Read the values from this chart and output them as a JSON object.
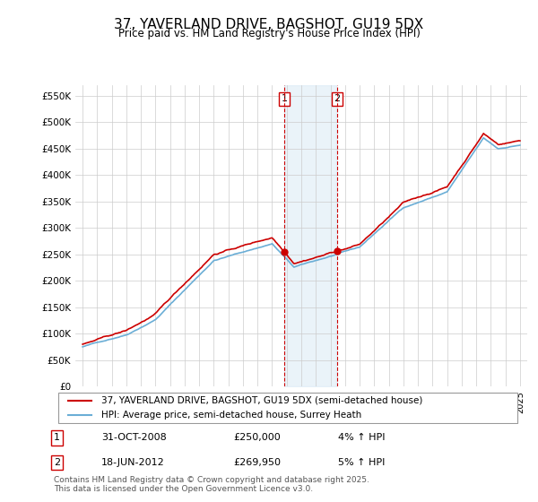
{
  "title": "37, YAVERLAND DRIVE, BAGSHOT, GU19 5DX",
  "subtitle": "Price paid vs. HM Land Registry's House Price Index (HPI)",
  "legend_line1": "37, YAVERLAND DRIVE, BAGSHOT, GU19 5DX (semi-detached house)",
  "legend_line2": "HPI: Average price, semi-detached house, Surrey Heath",
  "footnote": "Contains HM Land Registry data © Crown copyright and database right 2025.\nThis data is licensed under the Open Government Licence v3.0.",
  "annotation1_label": "1",
  "annotation1_date": "31-OCT-2008",
  "annotation1_price": "£250,000",
  "annotation1_hpi": "4% ↑ HPI",
  "annotation2_label": "2",
  "annotation2_date": "18-JUN-2012",
  "annotation2_price": "£269,950",
  "annotation2_hpi": "5% ↑ HPI",
  "sale1_year": 2008.83,
  "sale1_value": 250000,
  "sale2_year": 2012.46,
  "sale2_value": 269950,
  "hpi_color": "#6baed6",
  "price_color": "#cc0000",
  "shade_color": "#d6e8f5",
  "annotation_line_color": "#cc0000",
  "ylim": [
    0,
    570000
  ],
  "yticks": [
    0,
    50000,
    100000,
    150000,
    200000,
    250000,
    300000,
    350000,
    400000,
    450000,
    500000,
    550000
  ],
  "ytick_labels": [
    "£0",
    "£50K",
    "£100K",
    "£150K",
    "£200K",
    "£250K",
    "£300K",
    "£350K",
    "£400K",
    "£450K",
    "£500K",
    "£550K"
  ],
  "start_year": 1995,
  "end_year": 2025
}
